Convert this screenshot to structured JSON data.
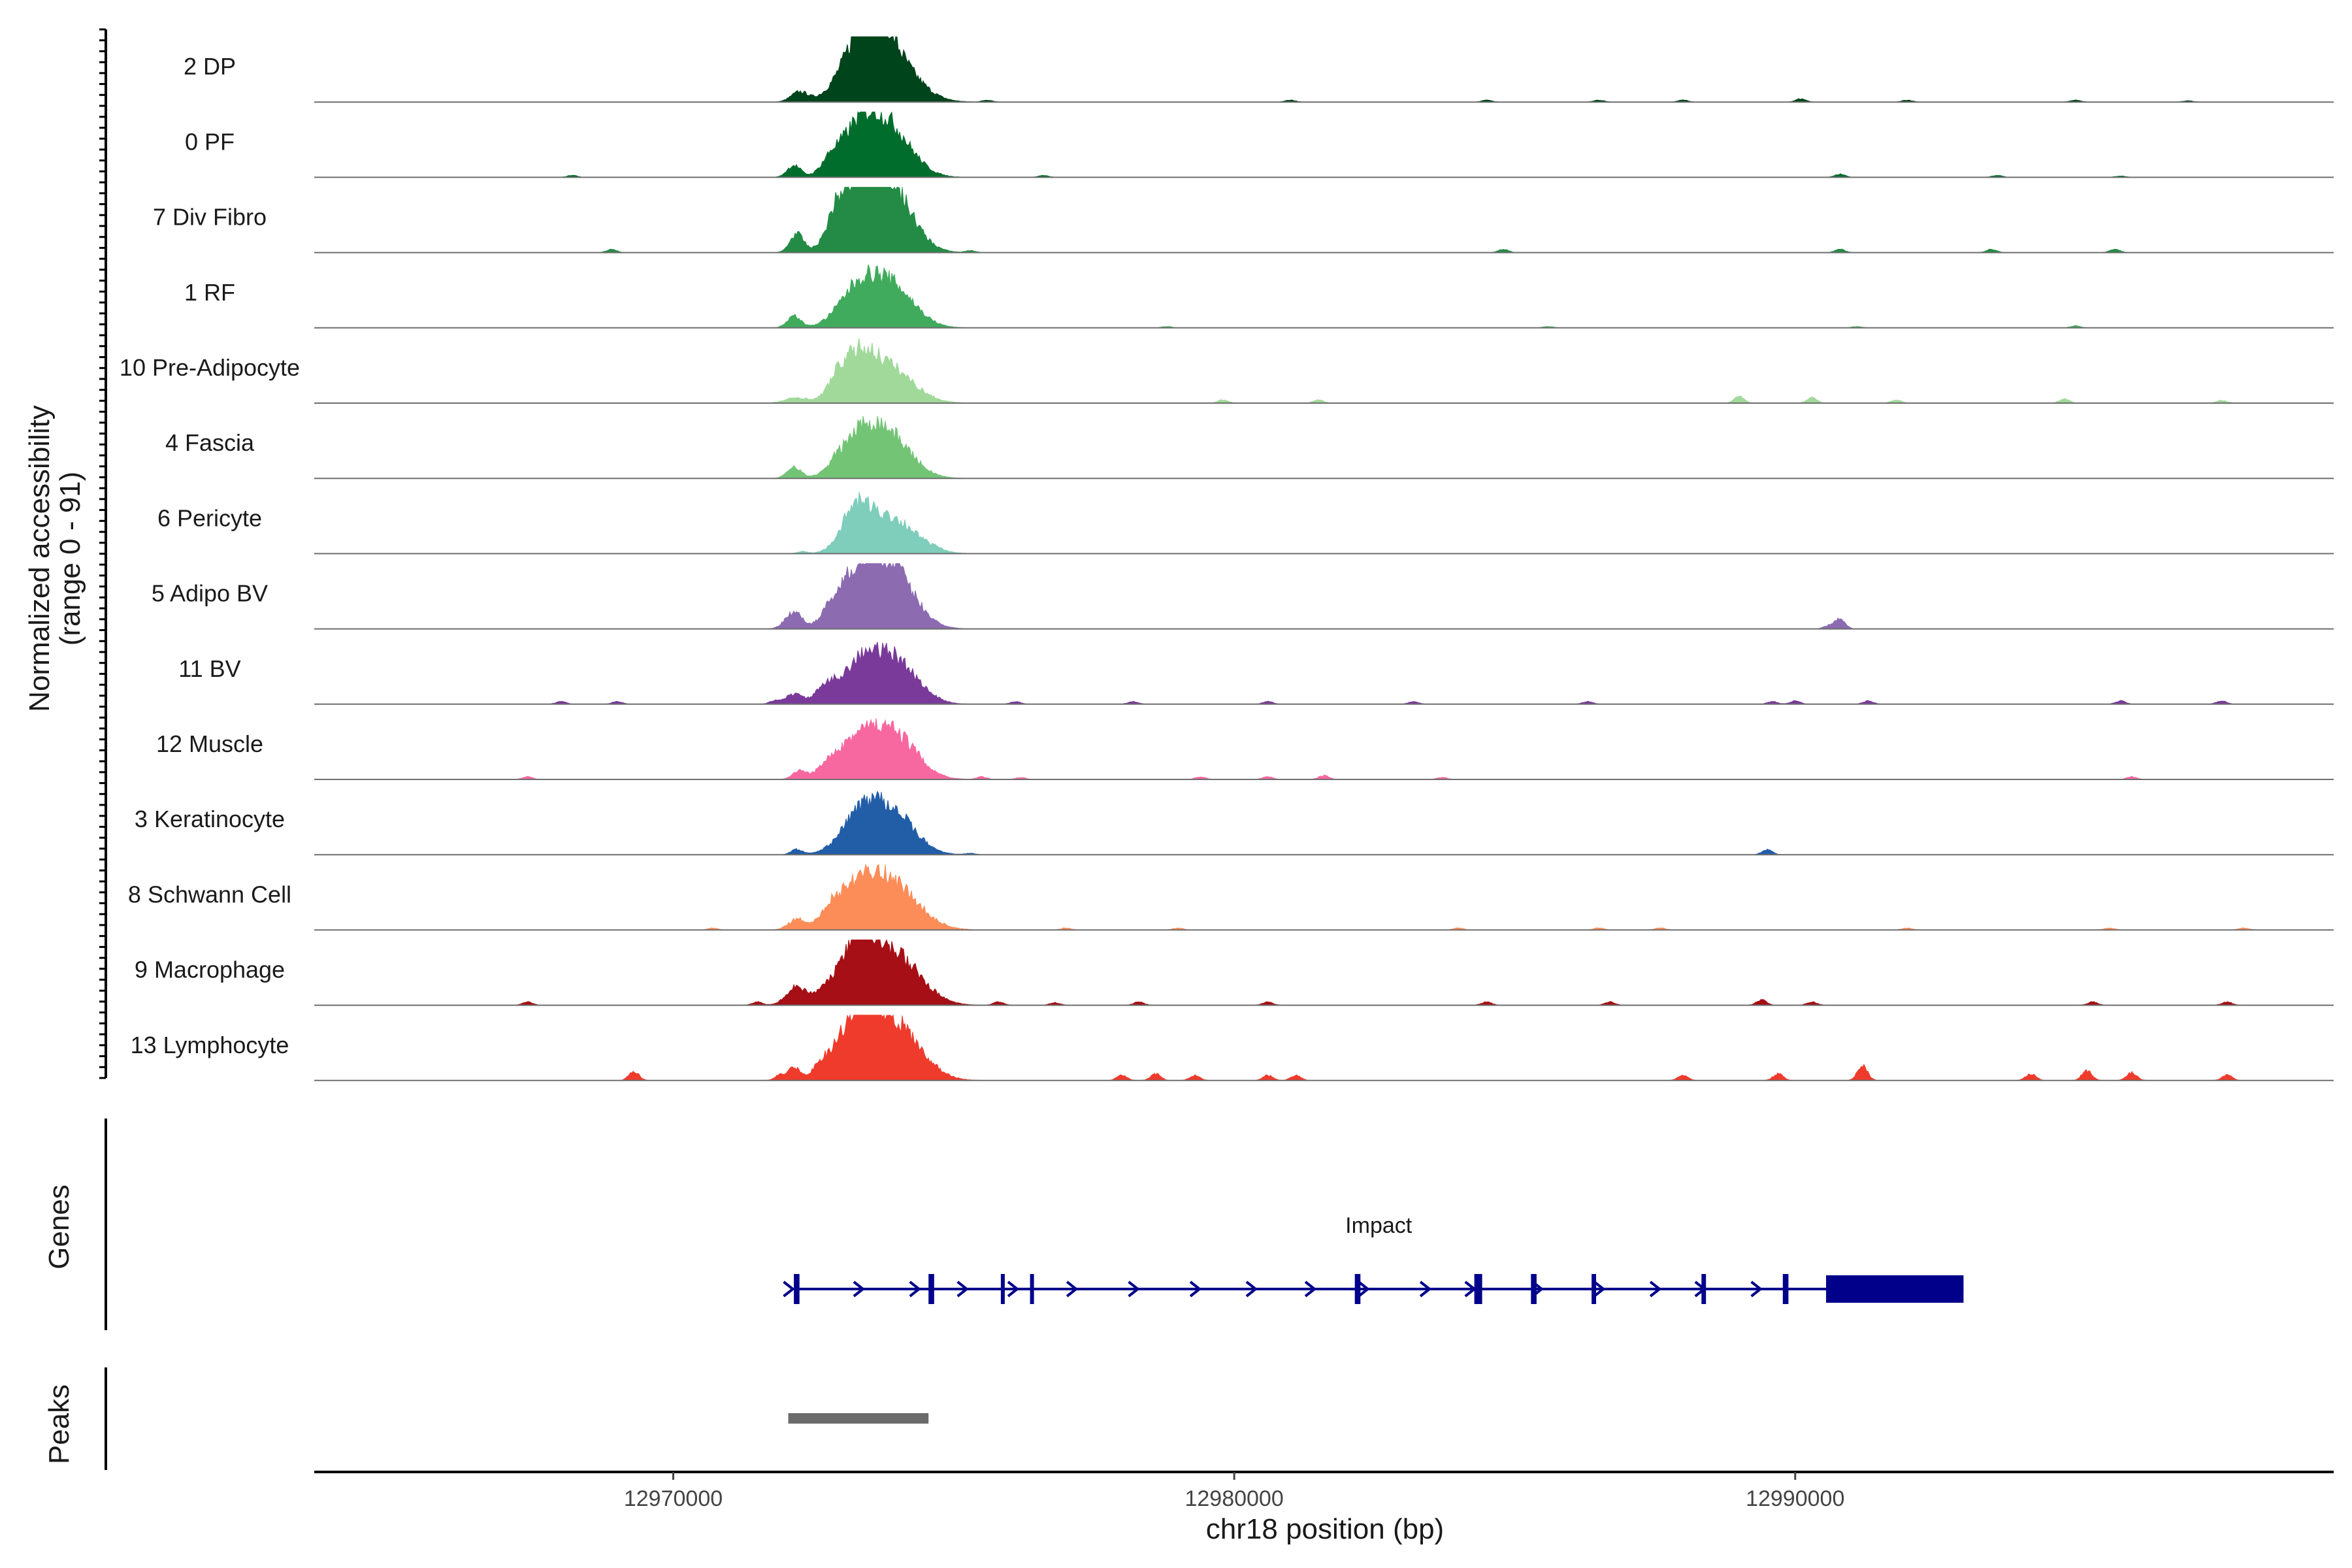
{
  "chart_data": {
    "type": "area",
    "region": "chr18",
    "xlim": [
      12963600,
      12999600
    ],
    "ylim": [
      0,
      91
    ],
    "ylabel": "Normalized accessibility",
    "ylabel_range": "(range 0 - 91)",
    "xlabel": "chr18 position (bp)",
    "x_ticks": [
      12970000,
      12980000,
      12990000
    ],
    "x_tick_labels": [
      "12970000",
      "12980000",
      "12990000"
    ],
    "peak_region": [
      12972050,
      12974550
    ],
    "series": [
      {
        "name": "2 DP",
        "color": "#00441B",
        "peaks": [
          [
            12972250,
            150,
            0.15
          ],
          [
            12973300,
            350,
            0.65
          ],
          [
            12973850,
            450,
            0.7
          ],
          [
            12973600,
            250,
            0.45
          ]
        ],
        "small": [
          [
            12975600,
            0.03
          ],
          [
            12981000,
            0.03
          ],
          [
            12984500,
            0.03
          ],
          [
            12986500,
            0.03
          ],
          [
            12988000,
            0.03
          ],
          [
            12990100,
            0.05
          ],
          [
            12992000,
            0.03
          ],
          [
            12995000,
            0.03
          ],
          [
            12997000,
            0.02
          ]
        ]
      },
      {
        "name": "0 PF",
        "color": "#006D2C",
        "peaks": [
          [
            12972150,
            120,
            0.18
          ],
          [
            12972800,
            150,
            0.15
          ],
          [
            12973300,
            350,
            0.65
          ],
          [
            12973850,
            400,
            0.7
          ]
        ],
        "small": [
          [
            12968200,
            0.03
          ],
          [
            12976600,
            0.03
          ],
          [
            12990800,
            0.05
          ],
          [
            12993600,
            0.03
          ],
          [
            12995800,
            0.02
          ]
        ]
      },
      {
        "name": "7 Div Fibro",
        "color": "#238B45",
        "peaks": [
          [
            12972200,
            120,
            0.28
          ],
          [
            12972900,
            150,
            0.3
          ],
          [
            12973300,
            350,
            0.85
          ],
          [
            12973850,
            400,
            0.95
          ]
        ],
        "small": [
          [
            12968900,
            0.05
          ],
          [
            12975300,
            0.03
          ],
          [
            12984800,
            0.05
          ],
          [
            12990800,
            0.05
          ],
          [
            12993500,
            0.05
          ],
          [
            12995700,
            0.05
          ]
        ]
      },
      {
        "name": "1 RF",
        "color": "#41AB5D",
        "peaks": [
          [
            12972150,
            120,
            0.18
          ],
          [
            12973300,
            350,
            0.55
          ],
          [
            12973900,
            400,
            0.6
          ]
        ],
        "small": [
          [
            12978800,
            0.02
          ],
          [
            12985600,
            0.02
          ],
          [
            12991100,
            0.02
          ],
          [
            12995000,
            0.03
          ]
        ]
      },
      {
        "name": "10 Pre-Adipocyte",
        "color": "#A1D99B",
        "peaks": [
          [
            12972200,
            200,
            0.08
          ],
          [
            12973250,
            300,
            0.55
          ],
          [
            12973800,
            450,
            0.55
          ],
          [
            12972900,
            150,
            0.15
          ]
        ],
        "small": [
          [
            12979800,
            0.05
          ],
          [
            12981500,
            0.05
          ],
          [
            12989000,
            0.1
          ],
          [
            12990300,
            0.08
          ],
          [
            12991800,
            0.05
          ],
          [
            12994800,
            0.06
          ],
          [
            12997600,
            0.04
          ]
        ]
      },
      {
        "name": "4 Fascia",
        "color": "#74C476",
        "peaks": [
          [
            12972150,
            120,
            0.18
          ],
          [
            12973300,
            350,
            0.55
          ],
          [
            12973850,
            400,
            0.6
          ]
        ],
        "small": [
          [
            12972900,
            0.06
          ]
        ]
      },
      {
        "name": "6 Pericyte",
        "color": "#7FCDBB",
        "peaks": [
          [
            12973250,
            250,
            0.55
          ],
          [
            12973850,
            450,
            0.55
          ]
        ],
        "small": [
          [
            12972300,
            0.03
          ],
          [
            12974700,
            0.02
          ]
        ]
      },
      {
        "name": "5 Adipo BV",
        "color": "#8C6BB1",
        "peaks": [
          [
            12972150,
            150,
            0.25
          ],
          [
            12973300,
            350,
            0.8
          ],
          [
            12973900,
            400,
            0.85
          ],
          [
            12972800,
            150,
            0.15
          ]
        ],
        "small": [
          [
            12990800,
            0.15
          ],
          [
            12990600,
            0.05
          ]
        ]
      },
      {
        "name": "11 BV",
        "color": "#7A3A9A",
        "peaks": [
          [
            12972150,
            150,
            0.15
          ],
          [
            12973300,
            350,
            0.55
          ],
          [
            12973950,
            400,
            0.65
          ],
          [
            12972700,
            180,
            0.18
          ]
        ],
        "small": [
          [
            12968000,
            0.04
          ],
          [
            12969000,
            0.04
          ],
          [
            12971800,
            0.05
          ],
          [
            12976100,
            0.04
          ],
          [
            12978200,
            0.04
          ],
          [
            12980600,
            0.04
          ],
          [
            12983200,
            0.04
          ],
          [
            12986300,
            0.04
          ],
          [
            12989600,
            0.04
          ],
          [
            12990000,
            0.05
          ],
          [
            12991300,
            0.05
          ],
          [
            12995800,
            0.05
          ],
          [
            12997600,
            0.05
          ]
        ]
      },
      {
        "name": "12 Muscle",
        "color": "#F768A1",
        "peaks": [
          [
            12972250,
            120,
            0.12
          ],
          [
            12973300,
            350,
            0.55
          ],
          [
            12973950,
            400,
            0.65
          ],
          [
            12972800,
            200,
            0.18
          ]
        ],
        "small": [
          [
            12967400,
            0.04
          ],
          [
            12975500,
            0.04
          ],
          [
            12976200,
            0.03
          ],
          [
            12979400,
            0.04
          ],
          [
            12980600,
            0.04
          ],
          [
            12981600,
            0.06
          ],
          [
            12983700,
            0.03
          ],
          [
            12996000,
            0.04
          ]
        ]
      },
      {
        "name": "3 Keratinocyte",
        "color": "#225EA8",
        "peaks": [
          [
            12972200,
            100,
            0.08
          ],
          [
            12973350,
            350,
            0.55
          ],
          [
            12973900,
            400,
            0.6
          ]
        ],
        "small": [
          [
            12989500,
            0.08
          ],
          [
            12975300,
            0.02
          ]
        ]
      },
      {
        "name": "8 Schwann Cell",
        "color": "#FC8D59",
        "peaks": [
          [
            12972200,
            150,
            0.15
          ],
          [
            12973300,
            400,
            0.65
          ],
          [
            12973950,
            450,
            0.6
          ],
          [
            12972800,
            150,
            0.15
          ]
        ],
        "small": [
          [
            12970700,
            0.03
          ],
          [
            12977000,
            0.03
          ],
          [
            12979000,
            0.03
          ],
          [
            12984000,
            0.03
          ],
          [
            12986500,
            0.03
          ],
          [
            12987600,
            0.03
          ],
          [
            12992000,
            0.03
          ],
          [
            12995600,
            0.03
          ],
          [
            12998000,
            0.03
          ]
        ]
      },
      {
        "name": "9 Macrophage",
        "color": "#A50F15",
        "peaks": [
          [
            12972200,
            180,
            0.28
          ],
          [
            12973300,
            300,
            0.95
          ],
          [
            12973950,
            450,
            0.75
          ],
          [
            12972700,
            180,
            0.18
          ]
        ],
        "small": [
          [
            12967400,
            0.05
          ],
          [
            12971500,
            0.05
          ],
          [
            12975800,
            0.05
          ],
          [
            12976800,
            0.04
          ],
          [
            12978300,
            0.05
          ],
          [
            12980600,
            0.05
          ],
          [
            12984500,
            0.05
          ],
          [
            12986700,
            0.05
          ],
          [
            12989400,
            0.08
          ],
          [
            12990300,
            0.05
          ],
          [
            12995300,
            0.05
          ],
          [
            12997700,
            0.05
          ]
        ]
      },
      {
        "name": "13 Lymphocyte",
        "color": "#EF3B2C",
        "peaks": [
          [
            12972150,
            100,
            0.2
          ],
          [
            12973300,
            300,
            0.95
          ],
          [
            12973950,
            450,
            0.85
          ],
          [
            12972700,
            200,
            0.25
          ]
        ],
        "small": [
          [
            12969300,
            0.14
          ],
          [
            12971900,
            0.08
          ],
          [
            12978000,
            0.08
          ],
          [
            12978600,
            0.1
          ],
          [
            12979300,
            0.08
          ],
          [
            12980600,
            0.08
          ],
          [
            12981100,
            0.08
          ],
          [
            12988000,
            0.08
          ],
          [
            12989700,
            0.1
          ],
          [
            12991200,
            0.22
          ],
          [
            12994200,
            0.1
          ],
          [
            12995200,
            0.15
          ],
          [
            12996000,
            0.12
          ],
          [
            12997700,
            0.08
          ]
        ]
      }
    ],
    "gene": {
      "name": "Impact",
      "start": 12972150,
      "end": 12993000,
      "exons": [
        [
          12972150,
          12972250
        ],
        [
          12974550,
          12974650
        ],
        [
          12975840,
          12975880
        ],
        [
          12976360,
          12976400
        ],
        [
          12982150,
          12982250
        ],
        [
          12984280,
          12984420
        ],
        [
          12985290,
          12985390
        ],
        [
          12986370,
          12986450
        ],
        [
          12988330,
          12988410
        ],
        [
          12989780,
          12989880
        ],
        [
          12990550,
          12993000
        ]
      ],
      "utr_start": 12990550,
      "arrows": [
        12972050,
        12973300,
        12974300,
        12975150,
        12976050,
        12977100,
        12978200,
        12979300,
        12980300,
        12981350,
        12982300,
        12983400,
        12984200,
        12985400,
        12986500,
        12987500,
        12988300,
        12989300
      ]
    },
    "side_titles": {
      "genes": "Genes",
      "peaks": "Peaks"
    }
  }
}
